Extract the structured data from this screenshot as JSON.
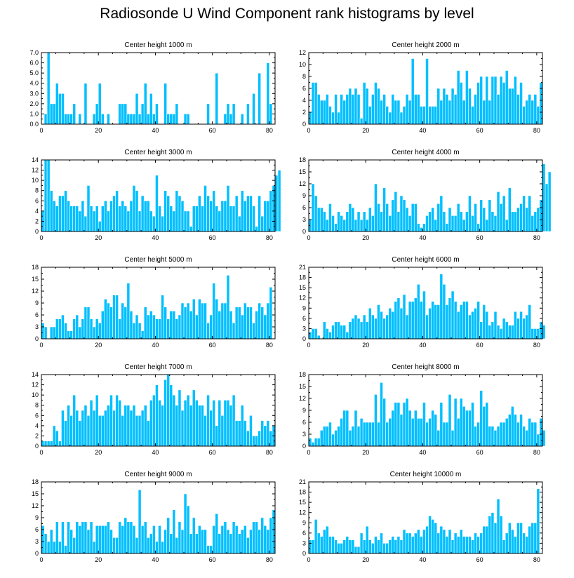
{
  "title": "Radiosonde U Wind Component rank histograms by level",
  "colors": {
    "bar": "#00bfff",
    "frame": "#000000",
    "background": "#ffffff"
  },
  "chart_data": [
    {
      "type": "bar",
      "title": "Center height 1000 m",
      "xlim": [
        0,
        82
      ],
      "ylim": [
        0,
        7
      ],
      "x_ticks": [
        0,
        20,
        40,
        60,
        80
      ],
      "y_ticks": [
        0,
        1,
        2,
        3,
        4,
        5,
        6,
        7
      ],
      "y_tick_labels": [
        "0.0",
        "1.0",
        "2.0",
        "3.0",
        "4.0",
        "5.0",
        "6.0",
        "7.0"
      ],
      "values": [
        0,
        1,
        7,
        2,
        2,
        4,
        3,
        3,
        1,
        1,
        1,
        2,
        0,
        1,
        0,
        4,
        0,
        0,
        1,
        2,
        4,
        1,
        0,
        1,
        0,
        0,
        0,
        2,
        2,
        2,
        1,
        1,
        1,
        3,
        1,
        2,
        4,
        1,
        3,
        1,
        2,
        0,
        0,
        4,
        1,
        1,
        1,
        2,
        0,
        0,
        1,
        1,
        0,
        0,
        0,
        0,
        0,
        0,
        2,
        0,
        0,
        5,
        0,
        0,
        1,
        2,
        1,
        2,
        0,
        0,
        1,
        0,
        2,
        0,
        3,
        0,
        5,
        0,
        0,
        6,
        2,
        0
      ]
    },
    {
      "type": "bar",
      "title": "Center height 2000 m",
      "xlim": [
        0,
        82
      ],
      "ylim": [
        0,
        12
      ],
      "x_ticks": [
        0,
        20,
        40,
        60,
        80
      ],
      "y_ticks": [
        0,
        2,
        4,
        6,
        8,
        10,
        12
      ],
      "values": [
        2,
        7,
        7,
        5,
        4,
        4,
        5,
        3,
        2,
        5,
        2,
        5,
        4,
        5,
        6,
        5,
        6,
        5,
        1,
        7,
        6,
        3,
        5,
        7,
        6,
        4,
        5,
        3,
        2,
        5,
        4,
        4,
        2,
        3,
        5,
        4,
        11,
        5,
        5,
        3,
        3,
        11,
        3,
        3,
        3,
        6,
        4,
        6,
        5,
        4,
        6,
        5,
        9,
        7,
        4,
        9,
        6,
        3,
        5,
        7,
        8,
        4,
        8,
        4,
        8,
        8,
        5,
        8,
        7,
        9,
        6,
        6,
        8,
        5,
        7,
        3,
        4,
        5,
        4,
        5,
        3,
        7
      ]
    },
    {
      "type": "bar",
      "title": "Center height 3000 m",
      "xlim": [
        0,
        82
      ],
      "ylim": [
        0,
        14
      ],
      "x_ticks": [
        0,
        20,
        40,
        60,
        80
      ],
      "y_ticks": [
        0,
        2,
        4,
        6,
        8,
        10,
        12,
        14
      ],
      "values": [
        4,
        14,
        14,
        8,
        6,
        5,
        7,
        7,
        8,
        6,
        5,
        5,
        5,
        4,
        6,
        3,
        9,
        5,
        4,
        5,
        2,
        5,
        6,
        4,
        6,
        7,
        8,
        5,
        6,
        5,
        4,
        6,
        9,
        8,
        4,
        7,
        6,
        6,
        4,
        3,
        11,
        5,
        3,
        8,
        7,
        5,
        4,
        8,
        7,
        6,
        4,
        4,
        1,
        5,
        5,
        7,
        5,
        9,
        7,
        6,
        8,
        5,
        4,
        6,
        6,
        9,
        5,
        5,
        7,
        3,
        8,
        6,
        7,
        7,
        5,
        1,
        7,
        3,
        6,
        6,
        8,
        9,
        11,
        12
      ]
    },
    {
      "type": "bar",
      "title": "Center height 4000 m",
      "xlim": [
        0,
        82
      ],
      "ylim": [
        0,
        18
      ],
      "x_ticks": [
        0,
        20,
        40,
        60,
        80
      ],
      "y_ticks": [
        0,
        3,
        6,
        9,
        12,
        15,
        18
      ],
      "values": [
        3,
        12,
        9,
        6,
        6,
        5,
        3,
        7,
        4,
        2,
        5,
        4,
        3,
        5,
        7,
        6,
        3,
        5,
        3,
        5,
        3,
        6,
        4,
        12,
        7,
        5,
        11,
        7,
        4,
        8,
        10,
        5,
        9,
        8,
        6,
        4,
        7,
        7,
        2,
        1,
        2,
        4,
        5,
        6,
        3,
        7,
        9,
        5,
        2,
        6,
        4,
        4,
        7,
        5,
        3,
        5,
        9,
        4,
        7,
        2,
        8,
        6,
        3,
        8,
        5,
        4,
        10,
        7,
        9,
        3,
        11,
        5,
        5,
        6,
        7,
        9,
        6,
        9,
        4,
        5,
        6,
        8,
        17,
        12,
        15
      ]
    },
    {
      "type": "bar",
      "title": "Center height 5000 m",
      "xlim": [
        0,
        82
      ],
      "ylim": [
        0,
        18
      ],
      "x_ticks": [
        0,
        20,
        40,
        60,
        80
      ],
      "y_ticks": [
        0,
        3,
        6,
        9,
        12,
        15,
        18
      ],
      "values": [
        4,
        3,
        0,
        3,
        3,
        5,
        5,
        6,
        4,
        2,
        2,
        5,
        6,
        3,
        5,
        8,
        8,
        5,
        3,
        5,
        4,
        7,
        10,
        9,
        8,
        11,
        11,
        5,
        9,
        8,
        14,
        7,
        4,
        6,
        4,
        2,
        8,
        6,
        7,
        6,
        5,
        5,
        11,
        8,
        5,
        7,
        7,
        5,
        6,
        9,
        8,
        9,
        7,
        10,
        6,
        10,
        9,
        9,
        4,
        6,
        14,
        10,
        7,
        9,
        9,
        16,
        7,
        4,
        8,
        8,
        6,
        9,
        8,
        8,
        4,
        7,
        9,
        8,
        6,
        9,
        13
      ]
    },
    {
      "type": "bar",
      "title": "Center height 6000 m",
      "xlim": [
        0,
        82
      ],
      "ylim": [
        0,
        21
      ],
      "x_ticks": [
        0,
        20,
        40,
        60,
        80
      ],
      "y_ticks": [
        0,
        3,
        6,
        9,
        12,
        15,
        18,
        21
      ],
      "values": [
        2,
        3,
        3,
        1,
        0,
        5,
        3,
        2,
        4,
        5,
        5,
        4,
        4,
        2,
        5,
        6,
        7,
        6,
        5,
        7,
        5,
        9,
        7,
        6,
        10,
        8,
        6,
        7,
        9,
        8,
        11,
        12,
        9,
        13,
        7,
        11,
        11,
        12,
        16,
        11,
        14,
        7,
        9,
        11,
        10,
        10,
        19,
        16,
        10,
        12,
        14,
        11,
        8,
        10,
        11,
        11,
        7,
        8,
        9,
        11,
        5,
        10,
        8,
        4,
        5,
        8,
        4,
        3,
        6,
        5,
        4,
        4,
        8,
        6,
        8,
        6,
        7,
        10,
        3,
        3,
        3,
        5,
        4
      ]
    },
    {
      "type": "bar",
      "title": "Center height 7000 m",
      "xlim": [
        0,
        82
      ],
      "ylim": [
        0,
        14
      ],
      "x_ticks": [
        0,
        20,
        40,
        60,
        80
      ],
      "y_ticks": [
        0,
        2,
        4,
        6,
        8,
        10,
        12,
        14
      ],
      "values": [
        1,
        1,
        1,
        1,
        4,
        3,
        1,
        7,
        5,
        8,
        6,
        10,
        7,
        5,
        7,
        8,
        6,
        9,
        7,
        10,
        6,
        6,
        7,
        8,
        10,
        7,
        10,
        9,
        6,
        8,
        8,
        7,
        8,
        6,
        6,
        7,
        8,
        5,
        9,
        10,
        12,
        9,
        8,
        13,
        14,
        12,
        10,
        8,
        11,
        7,
        9,
        10,
        8,
        11,
        9,
        8,
        8,
        6,
        10,
        7,
        9,
        4,
        9,
        6,
        9,
        9,
        8,
        10,
        5,
        5,
        8,
        5,
        3,
        6,
        2,
        2,
        3,
        5,
        4,
        5,
        3,
        4
      ]
    },
    {
      "type": "bar",
      "title": "Center height 8000 m",
      "xlim": [
        0,
        82
      ],
      "ylim": [
        0,
        18
      ],
      "x_ticks": [
        0,
        20,
        40,
        60,
        80
      ],
      "y_ticks": [
        0,
        3,
        6,
        9,
        12,
        15,
        18
      ],
      "values": [
        2,
        1,
        2,
        2,
        4,
        5,
        5,
        6,
        3,
        4,
        5,
        7,
        9,
        9,
        4,
        5,
        9,
        5,
        7,
        6,
        6,
        6,
        6,
        13,
        6,
        16,
        12,
        6,
        7,
        9,
        11,
        11,
        8,
        11,
        12,
        9,
        7,
        9,
        7,
        7,
        11,
        6,
        7,
        9,
        8,
        4,
        11,
        6,
        6,
        13,
        4,
        12,
        7,
        12,
        10,
        9,
        9,
        11,
        5,
        6,
        14,
        10,
        11,
        5,
        5,
        4,
        5,
        6,
        6,
        7,
        8,
        10,
        8,
        6,
        8,
        5,
        4,
        7,
        6,
        6,
        3,
        7,
        4
      ]
    },
    {
      "type": "bar",
      "title": "Center height 9000 m",
      "xlim": [
        0,
        82
      ],
      "ylim": [
        0,
        18
      ],
      "x_ticks": [
        0,
        20,
        40,
        60,
        80
      ],
      "y_ticks": [
        0,
        3,
        6,
        9,
        12,
        15,
        18
      ],
      "values": [
        7,
        5,
        3,
        6,
        3,
        8,
        3,
        8,
        2,
        8,
        6,
        4,
        8,
        7,
        8,
        8,
        6,
        8,
        3,
        7,
        7,
        7,
        7,
        8,
        6,
        4,
        4,
        8,
        7,
        9,
        8,
        8,
        7,
        4,
        16,
        7,
        8,
        4,
        5,
        7,
        3,
        7,
        3,
        6,
        9,
        5,
        11,
        4,
        8,
        6,
        15,
        12,
        5,
        9,
        5,
        7,
        6,
        6,
        2,
        2,
        7,
        10,
        5,
        7,
        8,
        6,
        5,
        8,
        7,
        5,
        6,
        7,
        4,
        6,
        8,
        8,
        6,
        9,
        7,
        6,
        9,
        11
      ]
    },
    {
      "type": "bar",
      "title": "Center height 10000 m",
      "xlim": [
        0,
        82
      ],
      "ylim": [
        0,
        21
      ],
      "x_ticks": [
        0,
        20,
        40,
        60,
        80
      ],
      "y_ticks": [
        0,
        3,
        6,
        9,
        12,
        15,
        18,
        21
      ],
      "values": [
        4,
        4,
        10,
        6,
        5,
        7,
        8,
        5,
        5,
        4,
        3,
        3,
        4,
        5,
        4,
        4,
        2,
        2,
        6,
        4,
        8,
        4,
        3,
        5,
        4,
        6,
        3,
        3,
        4,
        5,
        4,
        5,
        4,
        7,
        6,
        6,
        5,
        6,
        7,
        5,
        7,
        8,
        11,
        10,
        9,
        6,
        8,
        7,
        5,
        7,
        4,
        6,
        5,
        7,
        5,
        5,
        5,
        4,
        6,
        5,
        6,
        8,
        8,
        11,
        12,
        9,
        16,
        11,
        4,
        6,
        9,
        7,
        5,
        9,
        9,
        6,
        5,
        8,
        9,
        9,
        19
      ]
    }
  ]
}
